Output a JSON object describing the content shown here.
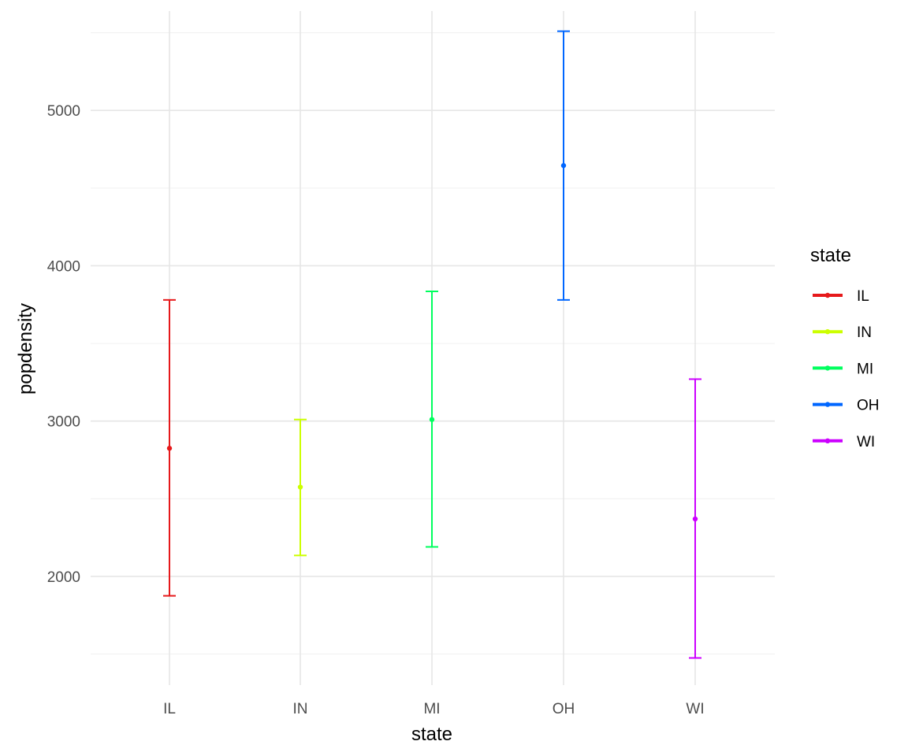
{
  "chart_data": {
    "type": "errorbar",
    "xlabel": "state",
    "ylabel": "popdensity",
    "categories": [
      "IL",
      "IN",
      "MI",
      "OH",
      "WI"
    ],
    "series": [
      {
        "name": "IL",
        "color": "#e6191b",
        "mean": 2825,
        "lower": 1875,
        "upper": 3780
      },
      {
        "name": "IN",
        "color": "#ccff00",
        "mean": 2575,
        "lower": 2135,
        "upper": 3010
      },
      {
        "name": "MI",
        "color": "#00ff5e",
        "mean": 3010,
        "lower": 2190,
        "upper": 3835
      },
      {
        "name": "OH",
        "color": "#0066ff",
        "mean": 4645,
        "lower": 3780,
        "upper": 5510
      },
      {
        "name": "WI",
        "color": "#cc00ff",
        "mean": 2370,
        "lower": 1475,
        "upper": 3270
      }
    ],
    "yticks": [
      2000,
      3000,
      4000,
      5000
    ],
    "ylim": [
      1300,
      5640
    ],
    "grid": true,
    "legend": {
      "title": "state",
      "position": "right"
    }
  }
}
